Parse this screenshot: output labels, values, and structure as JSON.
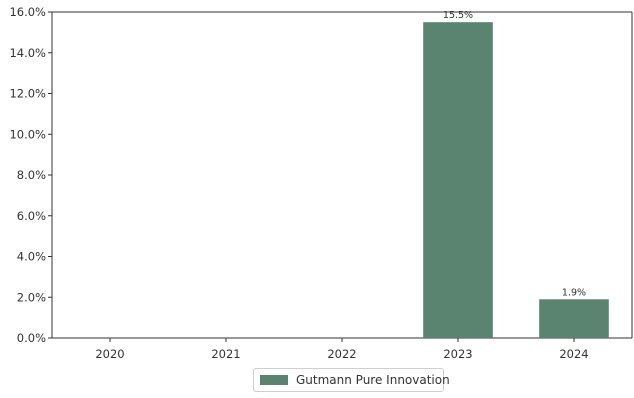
{
  "chart_data": {
    "type": "bar",
    "categories": [
      "2020",
      "2021",
      "2022",
      "2023",
      "2024"
    ],
    "series": [
      {
        "name": "Gutmann Pure Innovation",
        "values": [
          null,
          null,
          null,
          15.5,
          1.9
        ],
        "data_labels": [
          "",
          "",
          "",
          "15.5%",
          "1.9%"
        ],
        "color": "#5b8470"
      }
    ],
    "y_ticks": [
      "0.0%",
      "2.0%",
      "4.0%",
      "6.0%",
      "8.0%",
      "10.0%",
      "12.0%",
      "14.0%",
      "16.0%"
    ],
    "ylim": [
      0,
      16
    ],
    "grid": false,
    "legend_position": "bottom-center"
  }
}
